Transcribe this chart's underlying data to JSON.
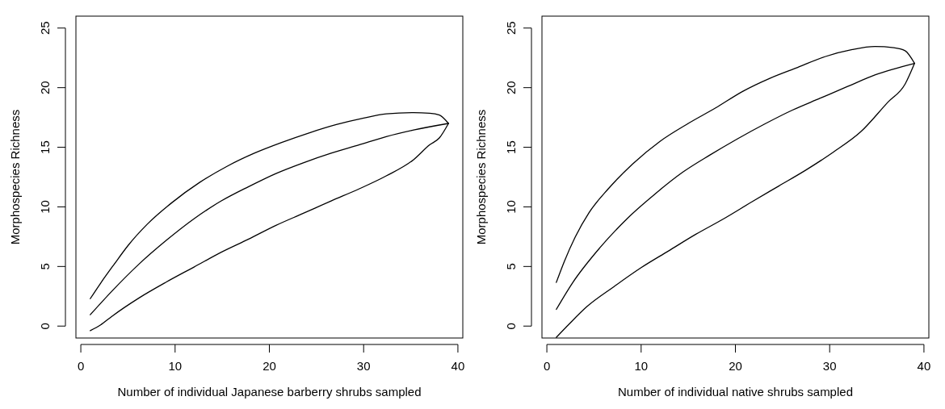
{
  "chart_data": [
    {
      "type": "line",
      "xlabel": "Number of individual Japanese barberry shrubs sampled",
      "ylabel": "Morphospecies Richness",
      "xlim": [
        -0.52,
        40.52
      ],
      "ylim": [
        -1,
        26
      ],
      "xticks": [
        0,
        10,
        20,
        30,
        40
      ],
      "yticks": [
        0,
        5,
        10,
        15,
        20,
        25
      ],
      "grid": false,
      "line_style": "solid",
      "marker": "none",
      "series": [
        {
          "color": "#000000",
          "x": [
            1,
            2.1,
            3.55,
            5,
            7.05,
            9.67,
            12.6,
            15.5,
            18.4,
            21.3,
            24.2,
            27.1,
            30,
            32.4,
            35.3,
            37,
            38.05,
            39
          ],
          "values": [
            2.3,
            3.6,
            5.2,
            6.75,
            8.55,
            10.36,
            12.05,
            13.4,
            14.5,
            15.4,
            16.2,
            16.9,
            17.45,
            17.8,
            17.9,
            17.86,
            17.7,
            17
          ]
        },
        {
          "color": "#000000",
          "x": [
            1,
            3.26,
            6.17,
            9.08,
            12,
            14.9,
            17.8,
            20.7,
            23.6,
            26.55,
            29.5,
            32.4,
            35.3,
            39
          ],
          "values": [
            0.95,
            2.9,
            5.2,
            7.2,
            9,
            10.5,
            11.7,
            12.8,
            13.7,
            14.5,
            15.2,
            15.9,
            16.45,
            17
          ]
        },
        {
          "color": "#000000",
          "x": [
            1,
            2.1,
            3.26,
            6.17,
            9.08,
            12,
            14.9,
            17.8,
            20.7,
            23.6,
            26.55,
            29.5,
            32.4,
            35.3,
            37,
            38.05,
            39
          ],
          "values": [
            -0.38,
            0.1,
            0.8,
            2.36,
            3.7,
            4.95,
            6.2,
            7.3,
            8.45,
            9.46,
            10.5,
            11.5,
            12.6,
            13.96,
            15.2,
            15.8,
            17
          ]
        }
      ]
    },
    {
      "type": "line",
      "xlabel": "Number of individual native shrubs sampled",
      "ylabel": "Morphospecies Richness",
      "xlim": [
        -0.52,
        40.52
      ],
      "ylim": [
        -1,
        26
      ],
      "xticks": [
        0,
        10,
        20,
        30,
        40
      ],
      "yticks": [
        0,
        5,
        10,
        15,
        20,
        25
      ],
      "grid": false,
      "line_style": "solid",
      "marker": "none",
      "series": [
        {
          "color": "#000000",
          "x": [
            1,
            1.84,
            3,
            4.46,
            6.5,
            9.1,
            12,
            15,
            17.9,
            20.8,
            23.7,
            26.6,
            29.5,
            32.4,
            34.8,
            36.8,
            38,
            39
          ],
          "values": [
            3.66,
            5.4,
            7.46,
            9.5,
            11.5,
            13.6,
            15.5,
            17,
            18.3,
            19.7,
            20.8,
            21.7,
            22.6,
            23.2,
            23.45,
            23.35,
            23.1,
            22.04
          ]
        },
        {
          "color": "#000000",
          "x": [
            1,
            2.7,
            5.6,
            8.5,
            11.5,
            14.4,
            17.3,
            20.2,
            23.1,
            26,
            28.95,
            31.9,
            34.8,
            39
          ],
          "values": [
            1.4,
            3.6,
            6.55,
            9,
            11.1,
            12.9,
            14.35,
            15.7,
            16.95,
            18.1,
            19.1,
            20.1,
            21.07,
            22.04
          ]
        },
        {
          "color": "#000000",
          "x": [
            1,
            2.4,
            4.2,
            7.1,
            10,
            12.9,
            15.8,
            18.75,
            21.7,
            24.6,
            27.5,
            30.4,
            33.3,
            36.2,
            38,
            39
          ],
          "values": [
            -0.95,
            0.2,
            1.6,
            3.3,
            4.9,
            6.3,
            7.7,
            9,
            10.4,
            11.75,
            13.1,
            14.6,
            16.3,
            18.8,
            20.3,
            22.04
          ]
        }
      ]
    }
  ]
}
